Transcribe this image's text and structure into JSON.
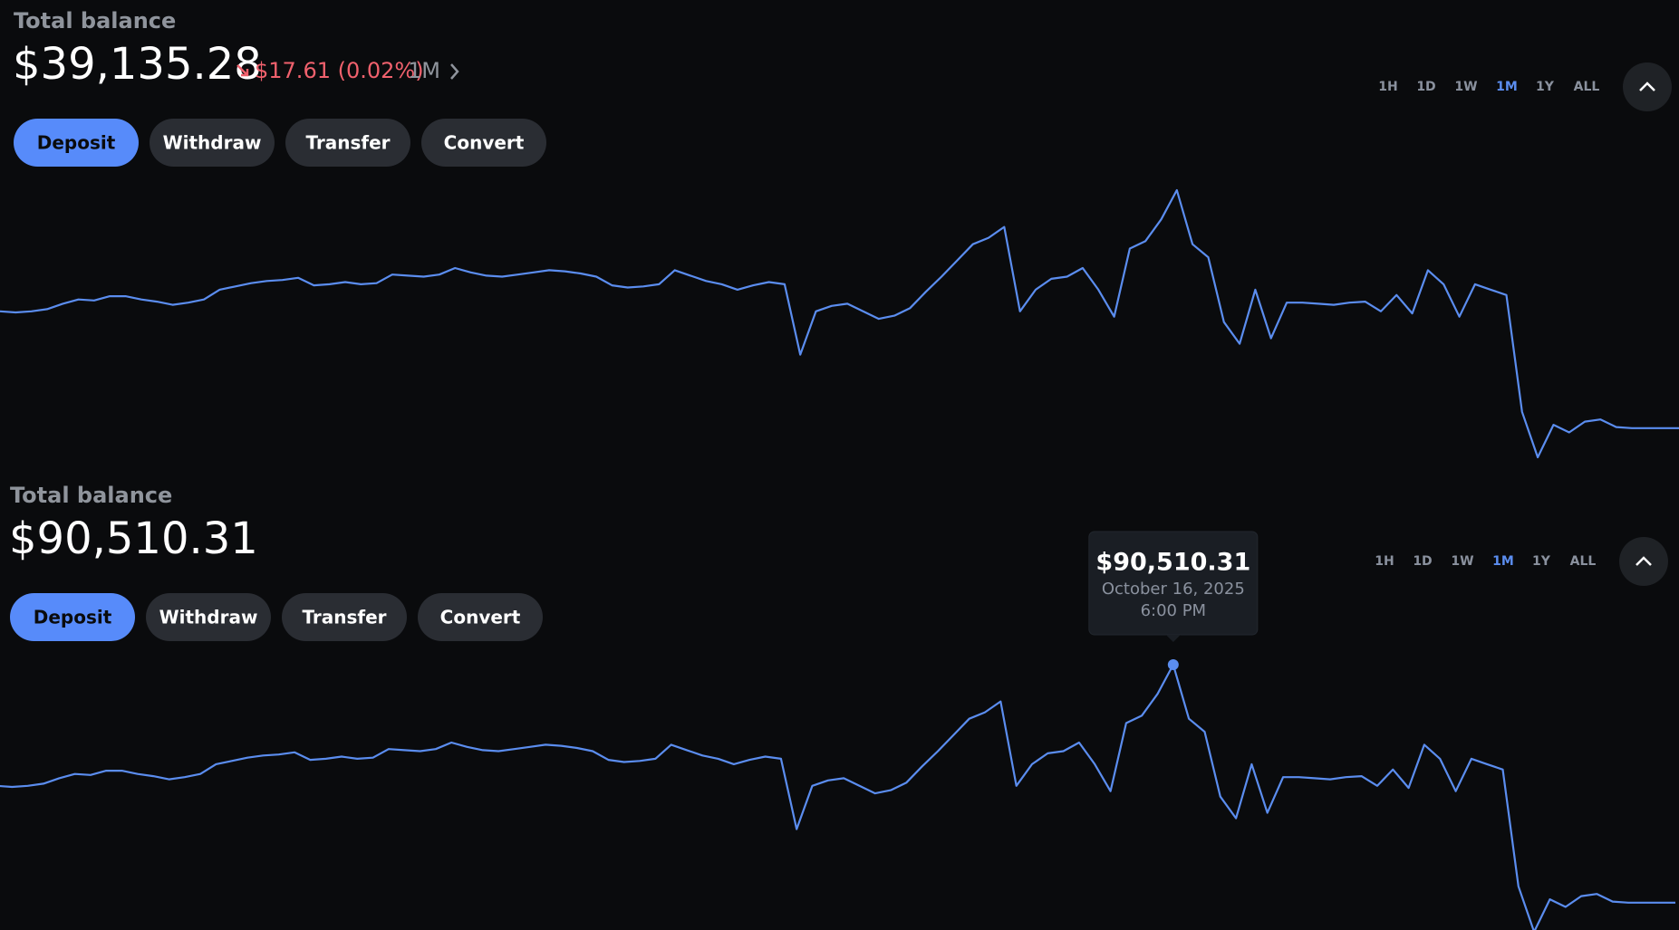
{
  "panels": [
    {
      "label": "Total balance",
      "balance": "$39,135.28",
      "change": "$17.61 (0.02%)",
      "period": "1M"
    },
    {
      "label": "Total balance",
      "balance": "$90,510.31",
      "tooltip": {
        "value": "$90,510.31",
        "date": "October 16, 2025",
        "time": "6:00 PM"
      }
    }
  ],
  "actions": [
    "Deposit",
    "Withdraw",
    "Transfer",
    "Convert"
  ],
  "ranges": [
    "1H",
    "1D",
    "1W",
    "1M",
    "1Y",
    "ALL"
  ],
  "active_range": "1M",
  "chart": {
    "type": "line",
    "color": "#5b8def",
    "values": [
      64350,
      64120,
      64350,
      64820,
      65990,
      66920,
      66690,
      67620,
      67620,
      66920,
      66450,
      65750,
      66220,
      66920,
      69020,
      69720,
      70420,
      70890,
      71120,
      71590,
      69960,
      70190,
      70660,
      70190,
      70420,
      72290,
      72060,
      71830,
      72290,
      73690,
      72760,
      72060,
      71830,
      72290,
      72760,
      73230,
      72990,
      72530,
      71830,
      69960,
      69490,
      69720,
      70190,
      73230,
      72060,
      70890,
      70190,
      69020,
      69960,
      70660,
      70190,
      55010,
      64350,
      65520,
      65990,
      64350,
      62720,
      63420,
      65050,
      68560,
      71830,
      75330,
      78830,
      80230,
      82570,
      64350,
      69020,
      71360,
      71830,
      73690,
      69020,
      63190,
      77900,
      79530,
      84200,
      90510.31,
      78830,
      76030,
      62020,
      57350,
      69020,
      58520,
      66220,
      66220,
      65990,
      65750,
      66220,
      66450,
      64350,
      67860,
      63890,
      73230,
      70190,
      63190,
      70190,
      69020,
      67860,
      42640,
      32830,
      39840,
      38200,
      40540,
      41000,
      39370,
      39135.28,
      39135.28,
      39135.28,
      39135.28
    ]
  }
}
